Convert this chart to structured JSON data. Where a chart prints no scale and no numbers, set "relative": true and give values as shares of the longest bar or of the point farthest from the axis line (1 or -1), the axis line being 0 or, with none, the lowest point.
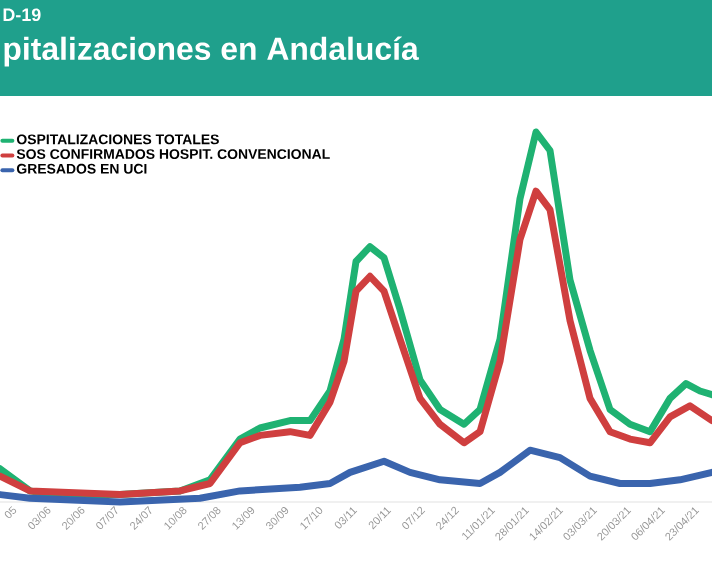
{
  "chart_data": {
    "type": "line",
    "title": "pitalizaciones en Andalucía",
    "subtitle": "D-19",
    "relative": true,
    "legend": "top left",
    "xlim": [
      "2020-05-11",
      "2021-05-02"
    ],
    "xticks": [
      {
        "value": "2020-05-17",
        "label": "05"
      },
      {
        "value": "2020-06-03",
        "label": "03/06"
      },
      {
        "value": "2020-06-20",
        "label": "20/06"
      },
      {
        "value": "2020-07-07",
        "label": "07/07"
      },
      {
        "value": "2020-07-24",
        "label": "24/07"
      },
      {
        "value": "2020-08-10",
        "label": "10/08"
      },
      {
        "value": "2020-08-27",
        "label": "27/08"
      },
      {
        "value": "2020-09-13",
        "label": "13/09"
      },
      {
        "value": "2020-09-30",
        "label": "30/09"
      },
      {
        "value": "2020-10-17",
        "label": "17/10"
      },
      {
        "value": "2020-11-03",
        "label": "03/11"
      },
      {
        "value": "2020-11-20",
        "label": "20/11"
      },
      {
        "value": "2020-12-07",
        "label": "07/12"
      },
      {
        "value": "2020-12-24",
        "label": "24/12"
      },
      {
        "value": "2021-01-11",
        "label": "11/01/21"
      },
      {
        "value": "2021-01-28",
        "label": "28/01/21"
      },
      {
        "value": "2021-02-14",
        "label": "14/02/21"
      },
      {
        "value": "2021-03-03",
        "label": "03/03/21"
      },
      {
        "value": "2021-03-20",
        "label": "20/03/21"
      },
      {
        "value": "2021-04-06",
        "label": "06/04/21"
      },
      {
        "value": "2021-04-23",
        "label": "23/04/21"
      }
    ],
    "series": [
      {
        "name": "OSPITALIZACIONES TOTALES",
        "color": "#1fb272",
        "x": [
          "2020-05-11",
          "2020-05-26",
          "2020-06-05",
          "2020-07-10",
          "2020-08-09",
          "2020-08-24",
          "2020-09-08",
          "2020-09-18",
          "2020-10-03",
          "2020-10-13",
          "2020-10-23",
          "2020-10-30",
          "2020-11-05",
          "2020-11-12",
          "2020-11-19",
          "2020-11-27",
          "2020-12-07",
          "2020-12-17",
          "2020-12-29",
          "2021-01-06",
          "2021-01-16",
          "2021-01-26",
          "2021-02-03",
          "2021-02-10",
          "2021-02-20",
          "2021-03-02",
          "2021-03-12",
          "2021-03-22",
          "2021-04-01",
          "2021-04-11",
          "2021-04-19",
          "2021-04-26",
          "2021-05-02"
        ],
        "values": [
          0.09,
          0.03,
          0.02,
          0.02,
          0.03,
          0.06,
          0.17,
          0.2,
          0.22,
          0.22,
          0.3,
          0.44,
          0.65,
          0.69,
          0.66,
          0.52,
          0.33,
          0.25,
          0.21,
          0.25,
          0.44,
          0.82,
          1.0,
          0.95,
          0.6,
          0.41,
          0.25,
          0.21,
          0.19,
          0.28,
          0.32,
          0.3,
          0.29
        ]
      },
      {
        "name": "SOS CONFIRMADOS HOSPIT. CONVENCIONAL",
        "color": "#cf3f3f",
        "x": [
          "2020-05-11",
          "2020-05-26",
          "2020-07-10",
          "2020-08-09",
          "2020-08-24",
          "2020-09-08",
          "2020-09-18",
          "2020-10-03",
          "2020-10-13",
          "2020-10-23",
          "2020-10-30",
          "2020-11-05",
          "2020-11-12",
          "2020-11-19",
          "2020-11-27",
          "2020-12-07",
          "2020-12-17",
          "2020-12-29",
          "2021-01-06",
          "2021-01-16",
          "2021-01-26",
          "2021-02-03",
          "2021-02-10",
          "2021-02-20",
          "2021-03-02",
          "2021-03-12",
          "2021-03-22",
          "2021-04-01",
          "2021-04-11",
          "2021-04-21",
          "2021-05-02"
        ],
        "values": [
          0.07,
          0.03,
          0.02,
          0.03,
          0.05,
          0.16,
          0.18,
          0.19,
          0.18,
          0.27,
          0.38,
          0.57,
          0.61,
          0.57,
          0.44,
          0.28,
          0.21,
          0.16,
          0.19,
          0.38,
          0.71,
          0.84,
          0.79,
          0.49,
          0.28,
          0.19,
          0.17,
          0.16,
          0.23,
          0.26,
          0.22
        ]
      },
      {
        "name": "GRESADOS EN UCI",
        "color": "#3a64ad",
        "x": [
          "2020-05-11",
          "2020-05-26",
          "2020-07-10",
          "2020-08-19",
          "2020-09-08",
          "2020-10-08",
          "2020-10-23",
          "2020-11-02",
          "2020-11-19",
          "2020-12-02",
          "2020-12-17",
          "2021-01-06",
          "2021-01-16",
          "2021-01-31",
          "2021-02-15",
          "2021-03-02",
          "2021-03-17",
          "2021-04-01",
          "2021-04-16",
          "2021-05-02"
        ],
        "values": [
          0.02,
          0.01,
          0.0,
          0.01,
          0.03,
          0.04,
          0.05,
          0.08,
          0.11,
          0.08,
          0.06,
          0.05,
          0.08,
          0.14,
          0.12,
          0.07,
          0.05,
          0.05,
          0.06,
          0.08
        ]
      }
    ]
  }
}
